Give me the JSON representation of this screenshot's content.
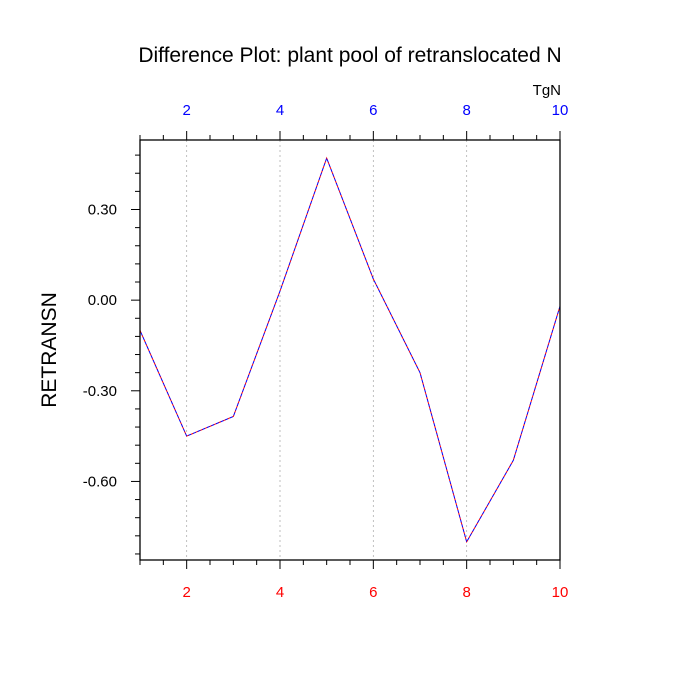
{
  "chart_data": {
    "type": "line",
    "title": "Difference Plot: plant pool of retranslocated N",
    "ylabel": "RETRANSN",
    "top_axis_units": "TgN",
    "x": [
      1,
      2,
      3,
      4,
      5,
      6,
      7,
      8,
      9,
      10
    ],
    "y": [
      -0.1,
      -0.45,
      -0.385,
      0.03,
      0.47,
      0.07,
      -0.24,
      -0.8,
      -0.53,
      -0.02
    ],
    "xlim": [
      1,
      10
    ],
    "ylim": [
      -0.86,
      0.53
    ],
    "x_ticks_major": [
      2,
      4,
      6,
      8,
      10
    ],
    "x_tick_labels": [
      "2",
      "4",
      "6",
      "8",
      "10"
    ],
    "y_ticks_major": [
      0.3,
      0.0,
      -0.3,
      -0.6
    ],
    "y_tick_labels": [
      "0.30",
      "0.00",
      "-0.30",
      "-0.60"
    ],
    "vertical_grid": true,
    "grid_style": "dotted",
    "line_style": "dashed",
    "colors": {
      "line_primary": "#0000ff",
      "line_secondary": "#ff0000",
      "bottom_tick_labels": "#ff0000",
      "top_tick_labels": "#0000ff",
      "left_tick_labels": "#000000",
      "grid": "#b0b0b0",
      "frame": "#000000"
    }
  }
}
